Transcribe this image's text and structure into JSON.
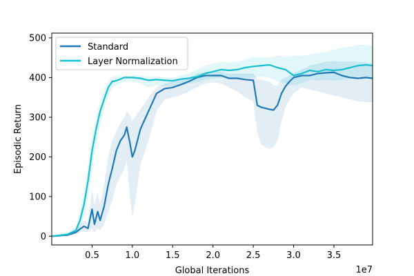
{
  "chart_data": {
    "type": "line",
    "title": "",
    "xlabel": "Global Iterations",
    "ylabel": "Episodic Return",
    "x_offset_label": "1e7",
    "xlim": [
      0.0,
      3.98
    ],
    "ylim": [
      -22,
      512
    ],
    "x_ticks": [
      0.5,
      1.0,
      1.5,
      2.0,
      2.5,
      3.0,
      3.5
    ],
    "x_tick_labels": [
      "0.5",
      "1.0",
      "1.5",
      "2.0",
      "2.5",
      "3.0",
      "3.5"
    ],
    "y_ticks": [
      0,
      100,
      200,
      300,
      400,
      500
    ],
    "y_tick_labels": [
      "0",
      "100",
      "200",
      "300",
      "400",
      "500"
    ],
    "grid": false,
    "legend_position": "top-left",
    "series": [
      {
        "name": "Standard",
        "color": "#1f77b4",
        "x": [
          0.0,
          0.2,
          0.3,
          0.35,
          0.4,
          0.45,
          0.5,
          0.53,
          0.57,
          0.6,
          0.65,
          0.7,
          0.75,
          0.8,
          0.85,
          0.9,
          0.93,
          0.97,
          1.0,
          1.03,
          1.1,
          1.2,
          1.3,
          1.4,
          1.5,
          1.6,
          1.7,
          1.8,
          1.9,
          2.0,
          2.1,
          2.2,
          2.3,
          2.4,
          2.5,
          2.55,
          2.6,
          2.7,
          2.75,
          2.8,
          2.85,
          2.9,
          2.95,
          3.0,
          3.1,
          3.2,
          3.3,
          3.4,
          3.5,
          3.6,
          3.7,
          3.8,
          3.9,
          3.98
        ],
        "y": [
          0,
          3,
          10,
          18,
          25,
          20,
          68,
          30,
          62,
          40,
          75,
          130,
          170,
          215,
          240,
          255,
          275,
          235,
          200,
          215,
          270,
          315,
          360,
          372,
          375,
          382,
          390,
          400,
          405,
          405,
          405,
          398,
          398,
          395,
          393,
          330,
          325,
          320,
          318,
          330,
          360,
          378,
          390,
          400,
          405,
          405,
          410,
          412,
          413,
          405,
          400,
          398,
          400,
          398
        ],
        "band_lower": [
          0,
          2,
          5,
          10,
          12,
          10,
          20,
          10,
          20,
          15,
          30,
          60,
          90,
          130,
          150,
          170,
          190,
          100,
          50,
          80,
          180,
          240,
          315,
          345,
          350,
          355,
          365,
          375,
          385,
          388,
          385,
          375,
          365,
          350,
          340,
          260,
          230,
          220,
          225,
          240,
          290,
          325,
          345,
          360,
          375,
          370,
          365,
          360,
          355,
          350,
          345,
          340,
          338,
          338
        ],
        "band_upper": [
          0,
          5,
          15,
          28,
          40,
          35,
          120,
          80,
          110,
          80,
          130,
          200,
          240,
          265,
          285,
          300,
          315,
          305,
          290,
          300,
          320,
          350,
          375,
          385,
          390,
          395,
          400,
          410,
          415,
          415,
          415,
          410,
          410,
          410,
          410,
          395,
          395,
          390,
          380,
          380,
          395,
          400,
          405,
          412,
          420,
          430,
          435,
          440,
          442,
          440,
          440,
          440,
          438,
          435
        ]
      },
      {
        "name": "Layer Normalization",
        "color": "#17becf",
        "x": [
          0.0,
          0.2,
          0.3,
          0.35,
          0.4,
          0.45,
          0.5,
          0.55,
          0.6,
          0.65,
          0.7,
          0.75,
          0.8,
          0.9,
          1.0,
          1.1,
          1.2,
          1.3,
          1.4,
          1.5,
          1.6,
          1.7,
          1.8,
          1.9,
          2.0,
          2.1,
          2.2,
          2.3,
          2.4,
          2.5,
          2.6,
          2.7,
          2.8,
          2.9,
          3.0,
          3.1,
          3.2,
          3.3,
          3.4,
          3.5,
          3.6,
          3.7,
          3.8,
          3.9,
          3.98
        ],
        "y": [
          0,
          5,
          15,
          40,
          80,
          140,
          215,
          270,
          315,
          345,
          375,
          390,
          392,
          400,
          400,
          398,
          393,
          395,
          393,
          392,
          396,
          398,
          402,
          410,
          415,
          420,
          418,
          420,
          425,
          428,
          430,
          432,
          425,
          420,
          405,
          410,
          418,
          415,
          420,
          418,
          420,
          425,
          430,
          432,
          430
        ],
        "band_lower": [
          0,
          3,
          8,
          20,
          50,
          100,
          170,
          230,
          280,
          320,
          355,
          375,
          380,
          390,
          390,
          385,
          375,
          380,
          378,
          378,
          380,
          385,
          388,
          395,
          398,
          400,
          396,
          398,
          400,
          400,
          402,
          400,
          390,
          385,
          380,
          385,
          395,
          392,
          395,
          392,
          395,
          398,
          402,
          400,
          400
        ],
        "band_upper": [
          0,
          8,
          25,
          60,
          110,
          180,
          250,
          300,
          340,
          370,
          390,
          400,
          405,
          405,
          405,
          405,
          402,
          402,
          400,
          400,
          405,
          410,
          420,
          430,
          435,
          440,
          438,
          440,
          445,
          452,
          452,
          450,
          455,
          452,
          455,
          455,
          458,
          462,
          465,
          470,
          475,
          478,
          482,
          482,
          480
        ]
      }
    ]
  }
}
